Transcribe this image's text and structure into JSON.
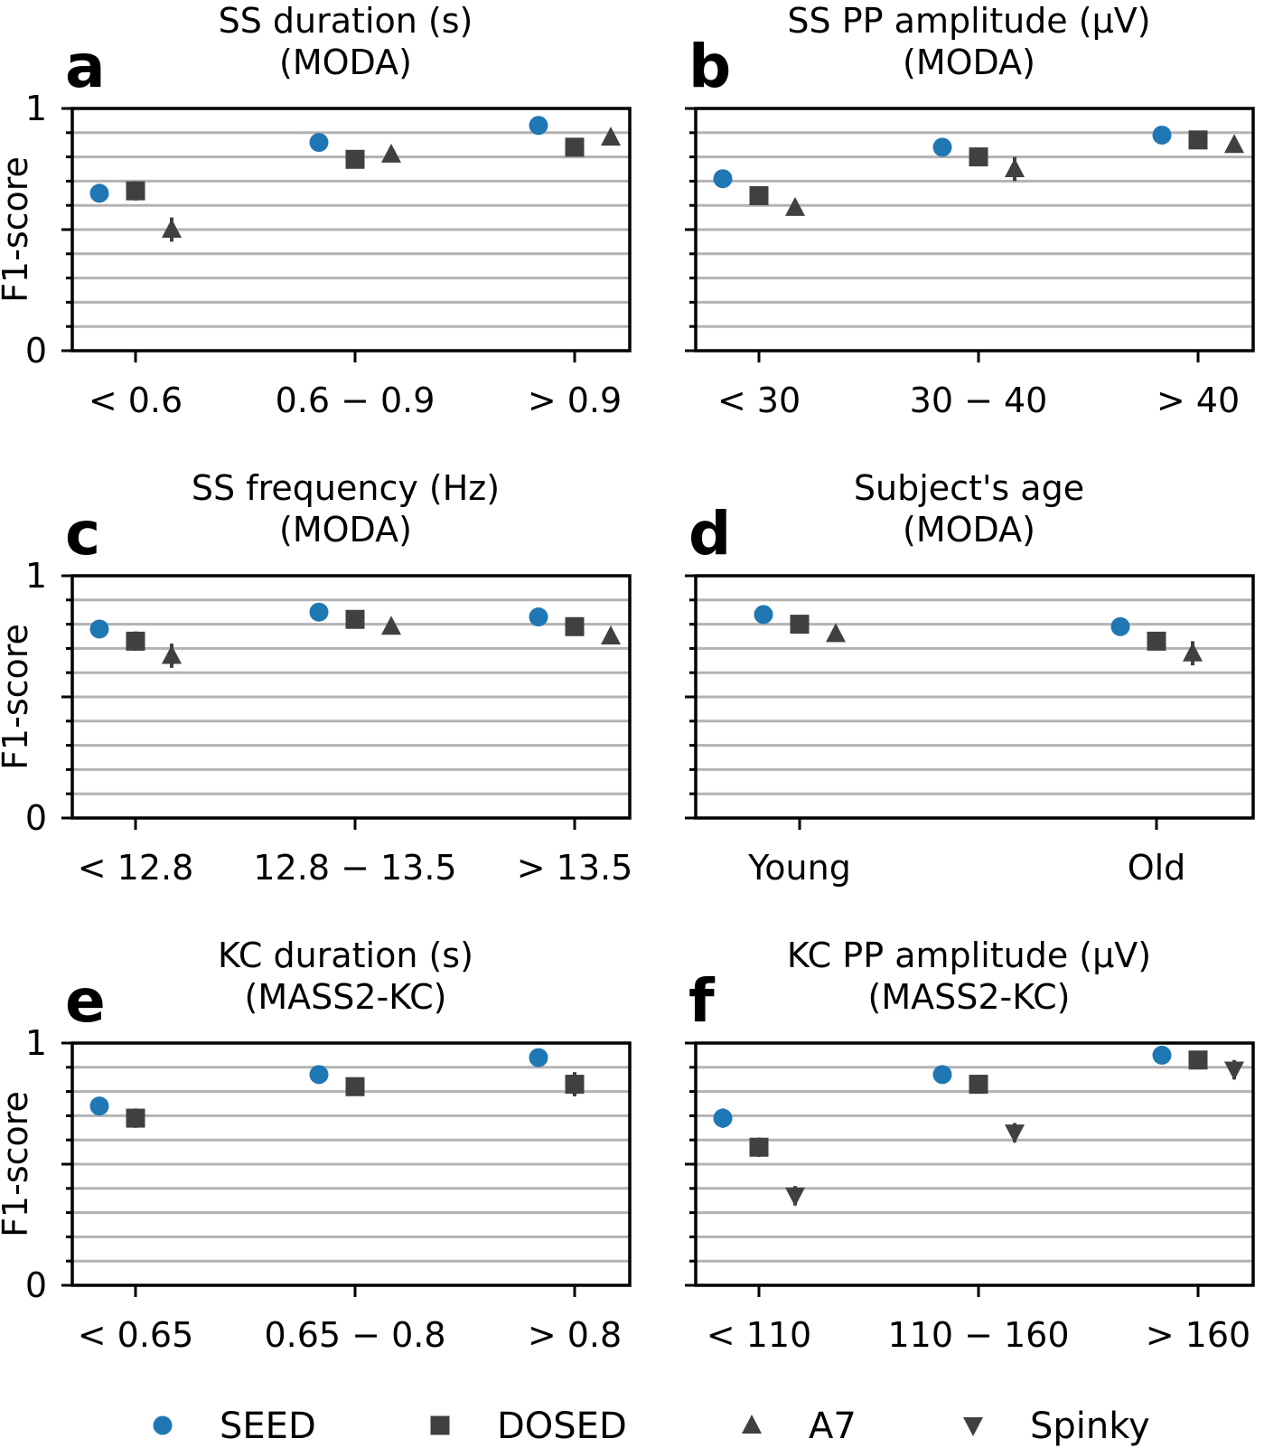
{
  "colors": {
    "SEED": "#1f77b4",
    "DOSED": "#404040",
    "A7": "#404040",
    "Spinky": "#404040"
  },
  "ylabel": "F1-score",
  "ytick_labels": [
    "0",
    "1"
  ],
  "legend": [
    {
      "name": "SEED",
      "marker": "circle"
    },
    {
      "name": "DOSED",
      "marker": "square"
    },
    {
      "name": "A7",
      "marker": "triangle-up"
    },
    {
      "name": "Spinky",
      "marker": "triangle-down"
    }
  ],
  "chart_data": [
    {
      "letter": "a",
      "title_line1": "SS duration (s)",
      "title_line2": "(MODA)",
      "type": "scatter",
      "ylim": [
        0,
        1
      ],
      "categories": [
        "< 0.6",
        "0.6 − 0.9",
        "> 0.9"
      ],
      "series": [
        {
          "name": "SEED",
          "values": [
            0.65,
            0.86,
            0.93
          ],
          "err": [
            0.03,
            0.02,
            0.01
          ]
        },
        {
          "name": "DOSED",
          "values": [
            0.66,
            0.79,
            0.84
          ],
          "err": [
            0.04,
            0.03,
            0.02
          ]
        },
        {
          "name": "A7",
          "values": [
            0.5,
            0.81,
            0.88
          ],
          "err": [
            0.05,
            0.02,
            0.02
          ]
        }
      ]
    },
    {
      "letter": "b",
      "title_line1": "SS PP amplitude (μV)",
      "title_line2": "(MODA)",
      "type": "scatter",
      "ylim": [
        0,
        1
      ],
      "categories": [
        "< 30",
        "30 − 40",
        "> 40"
      ],
      "series": [
        {
          "name": "SEED",
          "values": [
            0.71,
            0.84,
            0.89
          ],
          "err": [
            0.03,
            0.01,
            0.02
          ]
        },
        {
          "name": "DOSED",
          "values": [
            0.64,
            0.8,
            0.87
          ],
          "err": [
            0.03,
            0.03,
            0.03
          ]
        },
        {
          "name": "A7",
          "values": [
            0.59,
            0.75,
            0.85
          ],
          "err": [
            0.03,
            0.05,
            0.03
          ]
        }
      ]
    },
    {
      "letter": "c",
      "title_line1": "SS frequency (Hz)",
      "title_line2": "(MODA)",
      "type": "scatter",
      "ylim": [
        0,
        1
      ],
      "categories": [
        "< 12.8",
        "12.8 − 13.5",
        "> 13.5"
      ],
      "series": [
        {
          "name": "SEED",
          "values": [
            0.78,
            0.85,
            0.83
          ],
          "err": [
            0.03,
            0.01,
            0.01
          ]
        },
        {
          "name": "DOSED",
          "values": [
            0.73,
            0.82,
            0.79
          ],
          "err": [
            0.04,
            0.02,
            0.02
          ]
        },
        {
          "name": "A7",
          "values": [
            0.67,
            0.79,
            0.75
          ],
          "err": [
            0.05,
            0.02,
            0.03
          ]
        }
      ]
    },
    {
      "letter": "d",
      "title_line1": "Subject's age",
      "title_line2": "(MODA)",
      "type": "scatter",
      "ylim": [
        0,
        1
      ],
      "categories": [
        "Young",
        "Old"
      ],
      "series": [
        {
          "name": "SEED",
          "values": [
            0.84,
            0.79
          ],
          "err": [
            0.01,
            0.03
          ]
        },
        {
          "name": "DOSED",
          "values": [
            0.8,
            0.73
          ],
          "err": [
            0.02,
            0.03
          ]
        },
        {
          "name": "A7",
          "values": [
            0.76,
            0.68
          ],
          "err": [
            0.02,
            0.05
          ]
        }
      ]
    },
    {
      "letter": "e",
      "title_line1": "KC duration (s)",
      "title_line2": "(MASS2-KC)",
      "type": "scatter",
      "ylim": [
        0,
        1
      ],
      "categories": [
        "< 0.65",
        "0.65 − 0.8",
        "> 0.8"
      ],
      "series": [
        {
          "name": "SEED",
          "values": [
            0.74,
            0.87,
            0.94
          ],
          "err": [
            0.02,
            0.01,
            0.01
          ]
        },
        {
          "name": "DOSED",
          "values": [
            0.69,
            0.82,
            0.83
          ],
          "err": [
            0.04,
            0.02,
            0.05
          ]
        }
      ]
    },
    {
      "letter": "f",
      "title_line1": "KC PP amplitude (μV)",
      "title_line2": "(MASS2-KC)",
      "type": "scatter",
      "ylim": [
        0,
        1
      ],
      "categories": [
        "< 110",
        "110 − 160",
        "> 160"
      ],
      "series": [
        {
          "name": "SEED",
          "values": [
            0.69,
            0.87,
            0.95
          ],
          "err": [
            0.04,
            0.01,
            0.01
          ]
        },
        {
          "name": "DOSED",
          "values": [
            0.57,
            0.83,
            0.93
          ],
          "err": [
            0.04,
            0.03,
            0.03
          ]
        },
        {
          "name": "Spinky",
          "values": [
            0.37,
            0.63,
            0.89
          ],
          "err": [
            0.04,
            0.04,
            0.04
          ]
        }
      ]
    }
  ]
}
